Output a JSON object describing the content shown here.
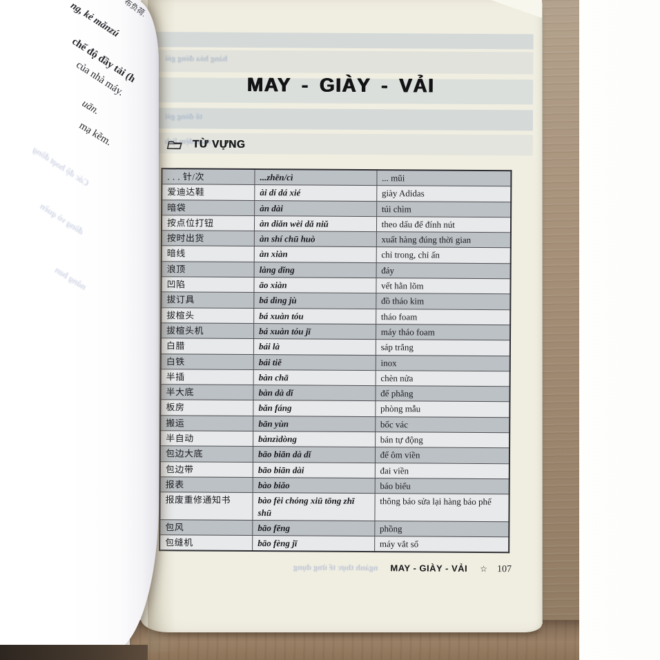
{
  "left_page": {
    "fragments": [
      "ng, kẻ mǎnzú",
      "布负荷.",
      "chế độ đầy tải (h",
      "của nhà máy.",
      "uān.",
      "mạ kẽm."
    ],
    "ghost_lines": [
      "Các độ hoạt đồng",
      "đồng vò quền",
      "nắng ban"
    ]
  },
  "right_page": {
    "title": "MAY - GIÀY - VẢI",
    "section_label": "TỪ VỰNG",
    "ghost_lines": [
      "hàng hóa đóng gói",
      "tổ đóng gói",
      "màn đệm lịch"
    ],
    "footer": {
      "ghost_text": "ngành thực tế ứng dụng",
      "chapter": "MAY - GIÀY - VẢI",
      "star": "☆",
      "page_number": "107"
    }
  },
  "vocab": {
    "rows": [
      {
        "zh": ". . . 针/次",
        "pinyin": "...zhēn/cì",
        "vi": "... mũi"
      },
      {
        "zh": "爱迪达鞋",
        "pinyin": "ài dí dá xié",
        "vi": "giày Adidas"
      },
      {
        "zh": "暗袋",
        "pinyin": "àn dài",
        "vi": "túi chìm"
      },
      {
        "zh": "按点位打钮",
        "pinyin": "àn diǎn wèi dǎ niǔ",
        "vi": "theo dấu để đính nút"
      },
      {
        "zh": "按时出货",
        "pinyin": "àn shí chū huò",
        "vi": "xuất hàng đúng thời gian"
      },
      {
        "zh": "暗线",
        "pinyin": "àn xiàn",
        "vi": "chỉ trong, chỉ ấn"
      },
      {
        "zh": "浪顶",
        "pinyin": "làng dǐng",
        "vi": "đáy"
      },
      {
        "zh": "凹陷",
        "pinyin": "āo xiàn",
        "vi": "vết hằn lõm"
      },
      {
        "zh": "拔订具",
        "pinyin": "bá dìng jù",
        "vi": "đồ tháo kim"
      },
      {
        "zh": "拔楦头",
        "pinyin": "bá xuàn tóu",
        "vi": "tháo foam"
      },
      {
        "zh": "拔楦头机",
        "pinyin": "bá xuàn tóu jī",
        "vi": "máy tháo foam"
      },
      {
        "zh": "白腊",
        "pinyin": "bái là",
        "vi": "sáp trắng"
      },
      {
        "zh": "白铁",
        "pinyin": "bái tiě",
        "vi": "inox"
      },
      {
        "zh": "半插",
        "pinyin": "bàn chā",
        "vi": "chèn nửa"
      },
      {
        "zh": "半大底",
        "pinyin": "bàn dà dǐ",
        "vi": "đế phẳng"
      },
      {
        "zh": "板房",
        "pinyin": "bǎn fáng",
        "vi": "phòng mẫu"
      },
      {
        "zh": "搬运",
        "pinyin": "bān yùn",
        "vi": "bốc vác"
      },
      {
        "zh": "半自动",
        "pinyin": "bànzìdòng",
        "vi": "bán tự động"
      },
      {
        "zh": "包边大底",
        "pinyin": "bāo biān dà dǐ",
        "vi": "đế ôm viền"
      },
      {
        "zh": "包边带",
        "pinyin": "bāo biān dài",
        "vi": "đai viền"
      },
      {
        "zh": "报表",
        "pinyin": "bào biǎo",
        "vi": "báo biểu"
      },
      {
        "zh": "报废重修通知书",
        "pinyin": "bào fèi chóng xiū tōng zhī shū",
        "vi": "thông báo sửa lại hàng báo phế"
      },
      {
        "zh": "包风",
        "pinyin": "bāo fēng",
        "vi": "phồng"
      },
      {
        "zh": "包缝机",
        "pinyin": "bāo fèng jī",
        "vi": "máy vắt sổ"
      }
    ]
  },
  "colors": {
    "page_cream": "#f0eee1",
    "row_gray": "#bcc1c5",
    "row_light": "#e7e9ea",
    "wood_brown": "#9b846c",
    "ink": "#17181c"
  }
}
